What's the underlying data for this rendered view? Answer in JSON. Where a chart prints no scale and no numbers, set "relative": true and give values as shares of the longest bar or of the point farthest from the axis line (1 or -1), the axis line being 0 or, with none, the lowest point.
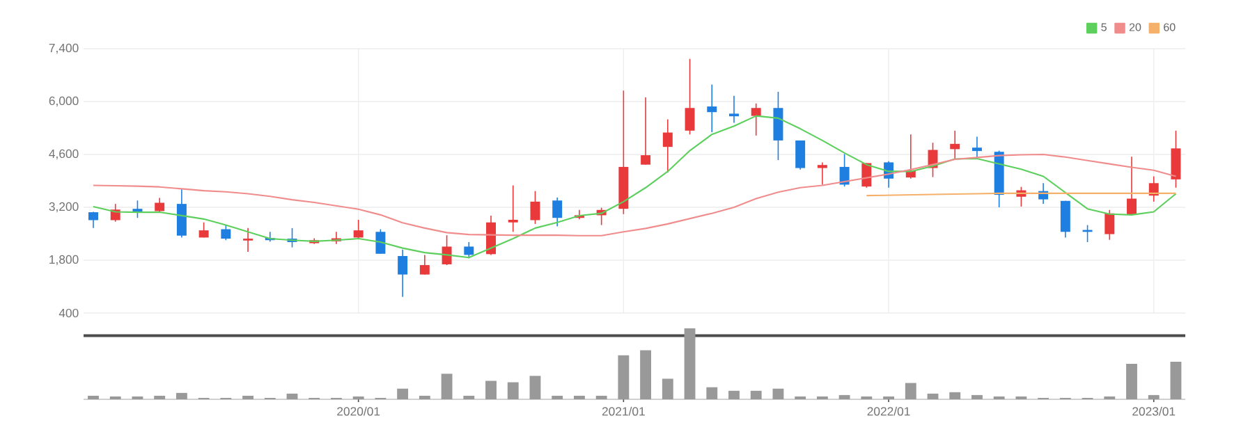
{
  "chart_data": [
    {
      "type": "candlestick",
      "x": [
        "2019-01",
        "2019-02",
        "2019-03",
        "2019-04",
        "2019-05",
        "2019-06",
        "2019-07",
        "2019-08",
        "2019-09",
        "2019-10",
        "2019-11",
        "2019-12",
        "2020-01",
        "2020-02",
        "2020-03",
        "2020-04",
        "2020-05",
        "2020-06",
        "2020-07",
        "2020-08",
        "2020-09",
        "2020-10",
        "2020-11",
        "2020-12",
        "2021-01",
        "2021-02",
        "2021-03",
        "2021-04",
        "2021-05",
        "2021-06",
        "2021-07",
        "2021-08",
        "2021-09",
        "2021-10",
        "2021-11",
        "2021-12",
        "2022-01",
        "2022-02",
        "2022-03",
        "2022-04",
        "2022-05",
        "2022-06",
        "2022-07",
        "2022-08",
        "2022-09",
        "2022-10",
        "2022-11",
        "2022-12",
        "2023-01",
        "2023-02"
      ],
      "ohlc": [
        [
          3070,
          3080,
          2650,
          2860
        ],
        [
          2860,
          3290,
          2820,
          3140
        ],
        [
          3160,
          3380,
          2920,
          3070
        ],
        [
          3100,
          3450,
          3080,
          3320
        ],
        [
          3290,
          3680,
          2400,
          2450
        ],
        [
          2400,
          2800,
          2400,
          2590
        ],
        [
          2620,
          2730,
          2330,
          2370
        ],
        [
          2320,
          2650,
          2020,
          2370
        ],
        [
          2390,
          2550,
          2290,
          2330
        ],
        [
          2370,
          2650,
          2140,
          2280
        ],
        [
          2250,
          2380,
          2230,
          2330
        ],
        [
          2300,
          2550,
          2230,
          2380
        ],
        [
          2400,
          2870,
          2370,
          2590
        ],
        [
          2550,
          2620,
          1970,
          1970
        ],
        [
          1910,
          2080,
          830,
          1420
        ],
        [
          1420,
          1940,
          1420,
          1670
        ],
        [
          1690,
          2460,
          1670,
          2160
        ],
        [
          2160,
          2280,
          1850,
          1940
        ],
        [
          1960,
          2980,
          1940,
          2800
        ],
        [
          2800,
          3780,
          2550,
          2870
        ],
        [
          2860,
          3630,
          2760,
          3350
        ],
        [
          3380,
          3460,
          2700,
          2920
        ],
        [
          2920,
          3130,
          2880,
          2990
        ],
        [
          2990,
          3190,
          2730,
          3130
        ],
        [
          3160,
          6290,
          3020,
          4270
        ],
        [
          4330,
          6110,
          4330,
          4580
        ],
        [
          4800,
          5530,
          4120,
          5180
        ],
        [
          5230,
          7130,
          5130,
          5830
        ],
        [
          5870,
          6450,
          5190,
          5720
        ],
        [
          5680,
          6150,
          5440,
          5610
        ],
        [
          5620,
          5950,
          5100,
          5830
        ],
        [
          5830,
          6260,
          4450,
          4970
        ],
        [
          4970,
          4970,
          4200,
          4240
        ],
        [
          4240,
          4390,
          3800,
          4320
        ],
        [
          4270,
          4610,
          3750,
          3800
        ],
        [
          3750,
          4370,
          3720,
          4370
        ],
        [
          4390,
          4420,
          3720,
          3960
        ],
        [
          3990,
          5130,
          3960,
          4180
        ],
        [
          4240,
          4910,
          4000,
          4720
        ],
        [
          4740,
          5230,
          4490,
          4880
        ],
        [
          4780,
          5070,
          4490,
          4690
        ],
        [
          4670,
          4700,
          3200,
          3530
        ],
        [
          3480,
          3740,
          3220,
          3650
        ],
        [
          3630,
          3840,
          3290,
          3410
        ],
        [
          3370,
          3370,
          2400,
          2550
        ],
        [
          2600,
          2730,
          2280,
          2550
        ],
        [
          2490,
          3130,
          2340,
          3040
        ],
        [
          3000,
          4540,
          2980,
          3430
        ],
        [
          3510,
          4020,
          3350,
          3840
        ],
        [
          3940,
          5230,
          3720,
          4760
        ]
      ],
      "colors": [
        "#1f7fe0",
        "#e8393b",
        "#1f7fe0",
        "#e8393b",
        "#1f7fe0",
        "#e8393b",
        "#1f7fe0",
        "#e8393b",
        "#1f7fe0",
        "#1f7fe0",
        "#e8393b",
        "#e8393b",
        "#e8393b",
        "#1f7fe0",
        "#1f7fe0",
        "#e8393b",
        "#e8393b",
        "#1f7fe0",
        "#e8393b",
        "#e8393b",
        "#e8393b",
        "#1f7fe0",
        "#e8393b",
        "#e8393b",
        "#e8393b",
        "#e8393b",
        "#e8393b",
        "#e8393b",
        "#1f7fe0",
        "#1f7fe0",
        "#e8393b",
        "#1f7fe0",
        "#1f7fe0",
        "#e8393b",
        "#1f7fe0",
        "#e8393b",
        "#1f7fe0",
        "#e8393b",
        "#e8393b",
        "#e8393b",
        "#1f7fe0",
        "#1f7fe0",
        "#e8393b",
        "#1f7fe0",
        "#1f7fe0",
        "#1f7fe0",
        "#e8393b",
        "#e8393b",
        "#e8393b",
        "#e8393b"
      ],
      "series": [
        {
          "name": "5",
          "type": "line",
          "color": "#5ccf5c",
          "values": [
            3220,
            3080,
            3070,
            3070,
            2980,
            2890,
            2730,
            2550,
            2370,
            2330,
            2300,
            2330,
            2370,
            2280,
            2120,
            2000,
            1940,
            1870,
            2120,
            2370,
            2650,
            2800,
            2980,
            3040,
            3350,
            3720,
            4150,
            4700,
            5130,
            5350,
            5620,
            5560,
            5280,
            4970,
            4640,
            4330,
            4150,
            4150,
            4290,
            4480,
            4490,
            4350,
            4210,
            4020,
            3590,
            3160,
            3020,
            3000,
            3080,
            3560
          ]
        },
        {
          "name": "20",
          "type": "line",
          "color": "#f08c8c",
          "values": [
            3780,
            3770,
            3760,
            3740,
            3690,
            3640,
            3610,
            3560,
            3490,
            3400,
            3330,
            3240,
            3150,
            3000,
            2790,
            2650,
            2530,
            2480,
            2470,
            2460,
            2460,
            2460,
            2450,
            2450,
            2550,
            2640,
            2760,
            2900,
            3040,
            3200,
            3430,
            3600,
            3720,
            3780,
            3880,
            3980,
            4080,
            4200,
            4330,
            4470,
            4520,
            4570,
            4590,
            4600,
            4530,
            4440,
            4350,
            4260,
            4180,
            4020
          ]
        },
        {
          "name": "60",
          "type": "line",
          "color": "#f5b06a",
          "values": [
            null,
            null,
            null,
            null,
            null,
            null,
            null,
            null,
            null,
            null,
            null,
            null,
            null,
            null,
            null,
            null,
            null,
            null,
            null,
            null,
            null,
            null,
            null,
            null,
            null,
            null,
            null,
            null,
            null,
            null,
            null,
            null,
            null,
            null,
            null,
            3510,
            3520,
            3530,
            3540,
            3550,
            3560,
            3570,
            3570,
            3570,
            3570,
            3570,
            3570,
            3570,
            3570,
            3570
          ]
        }
      ],
      "xlim": [
        "2018-12-18",
        "2023-02-14"
      ],
      "xticks": [
        {
          "value": "2020-01",
          "label": null
        },
        {
          "value": "2021-01",
          "label": null
        },
        {
          "value": "2022-01",
          "label": null
        },
        {
          "value": "2023-01",
          "label": null
        }
      ],
      "ylim": [
        400,
        7400
      ],
      "yticks": [
        {
          "value": 400,
          "label": "400"
        },
        {
          "value": 1800,
          "label": "1,800"
        },
        {
          "value": 3200,
          "label": "3,200"
        },
        {
          "value": 4600,
          "label": "4,600"
        },
        {
          "value": 6000,
          "label": "6,000"
        },
        {
          "value": 7400,
          "label": "7,400"
        }
      ],
      "tick_labels": "y",
      "grid": true,
      "legend": "top right"
    },
    {
      "type": "bar",
      "relative": true,
      "color": "#999999",
      "x": [
        "2019-01",
        "2019-02",
        "2019-03",
        "2019-04",
        "2019-05",
        "2019-06",
        "2019-07",
        "2019-08",
        "2019-09",
        "2019-10",
        "2019-11",
        "2019-12",
        "2020-01",
        "2020-02",
        "2020-03",
        "2020-04",
        "2020-05",
        "2020-06",
        "2020-07",
        "2020-08",
        "2020-09",
        "2020-10",
        "2020-11",
        "2020-12",
        "2021-01",
        "2021-02",
        "2021-03",
        "2021-04",
        "2021-05",
        "2021-06",
        "2021-07",
        "2021-08",
        "2021-09",
        "2021-10",
        "2021-11",
        "2021-12",
        "2022-01",
        "2022-02",
        "2022-03",
        "2022-04",
        "2022-05",
        "2022-06",
        "2022-07",
        "2022-08",
        "2022-09",
        "2022-10",
        "2022-11",
        "2022-12",
        "2023-01",
        "2023-02"
      ],
      "values": [
        0.05,
        0.04,
        0.04,
        0.05,
        0.09,
        0.02,
        0.02,
        0.05,
        0.02,
        0.08,
        0.02,
        0.02,
        0.04,
        0.02,
        0.15,
        0.05,
        0.36,
        0.05,
        0.26,
        0.24,
        0.33,
        0.05,
        0.05,
        0.05,
        0.62,
        0.69,
        0.29,
        1,
        0.17,
        0.12,
        0.12,
        0.15,
        0.04,
        0.04,
        0.06,
        0.04,
        0.04,
        0.23,
        0.08,
        0.1,
        0.06,
        0.04,
        0.04,
        0.02,
        0.02,
        0.02,
        0.04,
        0.5,
        0.06,
        0.53
      ],
      "xlim": [
        "2018-12-18",
        "2023-02-14"
      ],
      "xticks": [
        {
          "value": "2020-01",
          "label": "2020/01"
        },
        {
          "value": "2021-01",
          "label": "2021/01"
        },
        {
          "value": "2022-01",
          "label": "2022/01"
        },
        {
          "value": "2023-01",
          "label": "2023/01"
        }
      ],
      "tick_labels": "x"
    }
  ]
}
